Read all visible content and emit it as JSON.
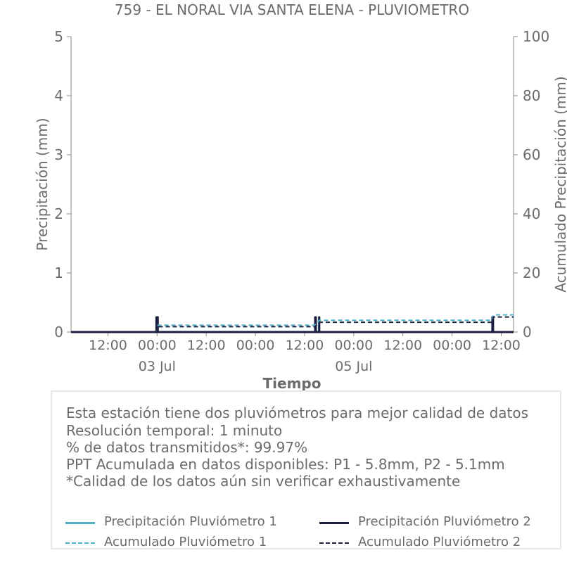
{
  "chart_data": {
    "type": "line",
    "title": "759 - EL NORAL VIA SANTA ELENA - PLUVIOMETRO",
    "xlabel": "Tiempo",
    "ylabel": "Precipitación (mm)",
    "y2label": "Acumulado Precipitación (mm)",
    "xlim": [
      "2024-07-02T03:00",
      "2024-07-06T15:00"
    ],
    "ylim": [
      0,
      5
    ],
    "y2lim": [
      0,
      100
    ],
    "yticks": [
      0,
      1,
      2,
      3,
      4,
      5
    ],
    "y2ticks": [
      0,
      20,
      40,
      60,
      80,
      100
    ],
    "xticks": [
      {
        "t": "2024-07-02T12:00",
        "label": "12:00",
        "sub": ""
      },
      {
        "t": "2024-07-03T00:00",
        "label": "00:00",
        "sub": "03 Jul"
      },
      {
        "t": "2024-07-03T12:00",
        "label": "12:00",
        "sub": ""
      },
      {
        "t": "2024-07-04T00:00",
        "label": "00:00",
        "sub": ""
      },
      {
        "t": "2024-07-04T12:00",
        "label": "12:00",
        "sub": ""
      },
      {
        "t": "2024-07-05T00:00",
        "label": "00:00",
        "sub": "05 Jul"
      },
      {
        "t": "2024-07-05T12:00",
        "label": "12:00",
        "sub": ""
      },
      {
        "t": "2024-07-06T00:00",
        "label": "00:00",
        "sub": ""
      },
      {
        "t": "2024-07-06T12:00",
        "label": "12:00",
        "sub": ""
      }
    ],
    "grid": false,
    "legend_placement": "bottom",
    "series": [
      {
        "name": "Precipitación Pluviómetro 1",
        "color": "#4fb0c6",
        "style": "solid",
        "axis": "left",
        "events": [
          {
            "t": "2024-07-02T23:55",
            "v": 0.25
          },
          {
            "t": "2024-07-03T00:05",
            "v": 0.25
          },
          {
            "t": "2024-07-04T14:40",
            "v": 0.25
          },
          {
            "t": "2024-07-04T15:30",
            "v": 0.25
          },
          {
            "t": "2024-07-06T09:55",
            "v": 0.25
          }
        ]
      },
      {
        "name": "Precipitación Pluviómetro 2",
        "color": "#1b2040",
        "style": "solid",
        "axis": "left",
        "events": [
          {
            "t": "2024-07-02T23:50",
            "v": 0.25
          },
          {
            "t": "2024-07-03T00:00",
            "v": 0.25
          },
          {
            "t": "2024-07-03T00:10",
            "v": 0.25
          },
          {
            "t": "2024-07-04T14:35",
            "v": 0.25
          },
          {
            "t": "2024-07-04T14:45",
            "v": 0.25
          },
          {
            "t": "2024-07-04T15:35",
            "v": 0.25
          },
          {
            "t": "2024-07-06T09:50",
            "v": 0.25
          },
          {
            "t": "2024-07-06T10:00",
            "v": 0.25
          }
        ]
      },
      {
        "name": "Acumulado Pluviómetro 1",
        "color": "#4fb0c6",
        "style": "dashed",
        "axis": "right",
        "points": [
          {
            "t": "2024-07-02T03:00",
            "v": 0.0
          },
          {
            "t": "2024-07-02T23:50",
            "v": 0.0
          },
          {
            "t": "2024-07-03T00:15",
            "v": 2.3
          },
          {
            "t": "2024-07-04T14:30",
            "v": 2.3
          },
          {
            "t": "2024-07-04T15:40",
            "v": 4.0
          },
          {
            "t": "2024-07-06T09:45",
            "v": 4.0
          },
          {
            "t": "2024-07-06T10:10",
            "v": 5.8
          },
          {
            "t": "2024-07-06T15:00",
            "v": 5.8
          }
        ]
      },
      {
        "name": "Acumulado Pluviómetro 2",
        "color": "#1b2040",
        "style": "dashed",
        "axis": "right",
        "points": [
          {
            "t": "2024-07-02T03:00",
            "v": 0.0
          },
          {
            "t": "2024-07-02T23:50",
            "v": 0.0
          },
          {
            "t": "2024-07-03T00:15",
            "v": 1.8
          },
          {
            "t": "2024-07-04T14:30",
            "v": 1.8
          },
          {
            "t": "2024-07-04T15:40",
            "v": 3.3
          },
          {
            "t": "2024-07-06T09:45",
            "v": 3.3
          },
          {
            "t": "2024-07-06T10:10",
            "v": 5.1
          },
          {
            "t": "2024-07-06T15:00",
            "v": 5.1
          }
        ]
      }
    ]
  },
  "info": {
    "lines": [
      "Esta estación tiene dos pluviómetros para mejor calidad de datos",
      "Resolución temporal: 1 minuto",
      "% de datos transmitidos*: 99.97%",
      "PPT Acumulada en datos disponibles: P1 - 5.8mm, P2 - 5.1mm",
      "*Calidad de los datos aún sin verificar exhaustivamente"
    ]
  },
  "legend": [
    {
      "label": "Precipitación Pluviómetro 1",
      "color": "#4fb0c6",
      "style": "solid"
    },
    {
      "label": "Precipitación Pluviómetro 2",
      "color": "#1b2040",
      "style": "solid"
    },
    {
      "label": "Acumulado Pluviómetro 1",
      "color": "#4fb0c6",
      "style": "dashed"
    },
    {
      "label": "Acumulado Pluviómetro 2",
      "color": "#1b2040",
      "style": "dashed"
    }
  ]
}
